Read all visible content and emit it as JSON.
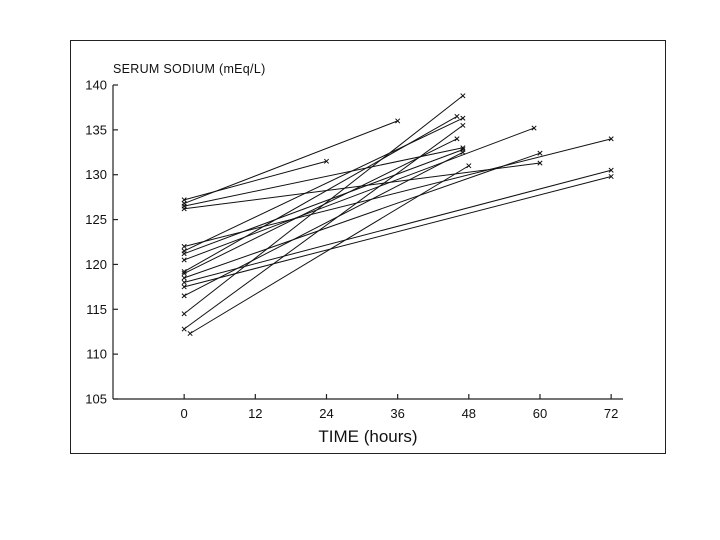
{
  "chart_data": {
    "type": "line",
    "title": "",
    "ylabel": "SERUM SODIUM (mEq/L)",
    "xlabel": "TIME (hours)",
    "xlim": [
      -12,
      74
    ],
    "ylim": [
      105,
      140
    ],
    "xticks": [
      0,
      12,
      24,
      36,
      48,
      60,
      72
    ],
    "yticks": [
      105,
      110,
      115,
      120,
      125,
      130,
      135,
      140
    ],
    "grid": false,
    "marker": "x",
    "series": [
      {
        "x": [
          0,
          24
        ],
        "y": [
          127.2,
          131.5
        ]
      },
      {
        "x": [
          0,
          36
        ],
        "y": [
          126.8,
          136.0
        ]
      },
      {
        "x": [
          0,
          47
        ],
        "y": [
          126.5,
          133.0
        ]
      },
      {
        "x": [
          0,
          60
        ],
        "y": [
          126.2,
          131.3
        ]
      },
      {
        "x": [
          0,
          72
        ],
        "y": [
          122.0,
          134.0
        ]
      },
      {
        "x": [
          0,
          47
        ],
        "y": [
          121.5,
          136.3
        ]
      },
      {
        "x": [
          0,
          47
        ],
        "y": [
          121.2,
          132.8
        ]
      },
      {
        "x": [
          0,
          59
        ],
        "y": [
          120.5,
          135.2
        ]
      },
      {
        "x": [
          0,
          46
        ],
        "y": [
          119.2,
          136.5
        ]
      },
      {
        "x": [
          0,
          46
        ],
        "y": [
          119.0,
          134.0
        ]
      },
      {
        "x": [
          0,
          60
        ],
        "y": [
          118.5,
          132.4
        ]
      },
      {
        "x": [
          0,
          72
        ],
        "y": [
          118.0,
          130.5
        ]
      },
      {
        "x": [
          0,
          72
        ],
        "y": [
          117.5,
          129.8
        ]
      },
      {
        "x": [
          0,
          47
        ],
        "y": [
          116.5,
          132.5
        ]
      },
      {
        "x": [
          0,
          47
        ],
        "y": [
          114.5,
          138.8
        ]
      },
      {
        "x": [
          0,
          47
        ],
        "y": [
          112.8,
          135.5
        ]
      },
      {
        "x": [
          1,
          48
        ],
        "y": [
          112.3,
          131.0
        ]
      }
    ]
  }
}
